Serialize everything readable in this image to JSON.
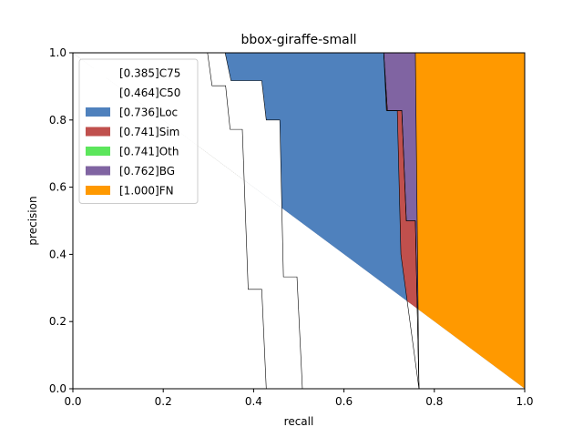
{
  "chart_data": {
    "type": "area",
    "title": "bbox-giraffe-small",
    "xlabel": "recall",
    "ylabel": "precision",
    "xlim": [
      0,
      1
    ],
    "ylim": [
      0,
      1
    ],
    "xticks": [
      "0.0",
      "0.2",
      "0.4",
      "0.6",
      "0.8",
      "1.0"
    ],
    "yticks": [
      "0.0",
      "0.2",
      "0.4",
      "0.6",
      "0.8",
      "1.0"
    ],
    "grid": false,
    "legend_position": "top-left",
    "series": [
      {
        "name": "[0.385]C75",
        "color": "#ffffff",
        "points": [
          [
            0,
            1
          ],
          [
            0.298,
            1
          ],
          [
            0.308,
            0.902
          ],
          [
            0.338,
            0.902
          ],
          [
            0.348,
            0.772
          ],
          [
            0.375,
            0.772
          ],
          [
            0.388,
            0.296
          ],
          [
            0.418,
            0.296
          ],
          [
            0.428,
            0
          ],
          [
            1,
            0
          ]
        ]
      },
      {
        "name": "[0.464]C50",
        "color": "#ffffff",
        "points": [
          [
            0,
            1
          ],
          [
            0.337,
            1
          ],
          [
            0.35,
            0.917
          ],
          [
            0.418,
            0.917
          ],
          [
            0.428,
            0.8
          ],
          [
            0.458,
            0.8
          ],
          [
            0.466,
            0.333
          ],
          [
            0.496,
            0.333
          ],
          [
            0.508,
            0
          ],
          [
            1,
            0
          ]
        ]
      },
      {
        "name": "[0.736]Loc",
        "color": "#4f81bd",
        "points": [
          [
            0,
            1
          ],
          [
            0.688,
            1
          ],
          [
            0.694,
            0.828
          ],
          [
            0.718,
            0.828
          ],
          [
            0.726,
            0.4
          ],
          [
            0.766,
            0
          ],
          [
            1,
            0
          ]
        ]
      },
      {
        "name": "[0.741]Sim",
        "color": "#c0504d",
        "points": [
          [
            0,
            1
          ],
          [
            0.688,
            1
          ],
          [
            0.696,
            0.828
          ],
          [
            0.728,
            0.828
          ],
          [
            0.738,
            0.5
          ],
          [
            0.758,
            0.5
          ],
          [
            0.766,
            0
          ],
          [
            1,
            0
          ]
        ]
      },
      {
        "name": "[0.741]Oth",
        "color": "#5ce65c",
        "points": [
          [
            0,
            1
          ],
          [
            0.688,
            1
          ],
          [
            0.696,
            0.828
          ],
          [
            0.728,
            0.828
          ],
          [
            0.738,
            0.5
          ],
          [
            0.758,
            0.5
          ],
          [
            0.766,
            0
          ],
          [
            1,
            0
          ]
        ]
      },
      {
        "name": "[0.762]BG",
        "color": "#8064a2",
        "points": [
          [
            0,
            1
          ],
          [
            0.758,
            1
          ],
          [
            0.766,
            0
          ],
          [
            1,
            0
          ]
        ]
      },
      {
        "name": "[1.000]FN",
        "color": "#ff9900",
        "points": [
          [
            0,
            1
          ],
          [
            1,
            1
          ],
          [
            1,
            0
          ]
        ]
      }
    ]
  }
}
